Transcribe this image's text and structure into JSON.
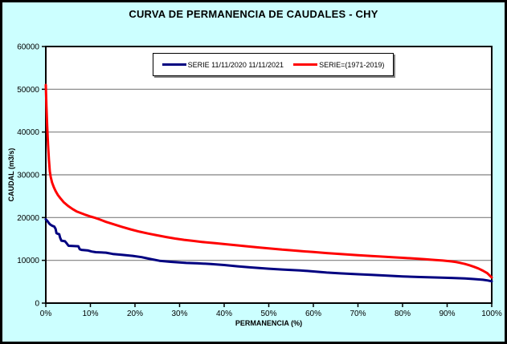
{
  "window": {
    "background": "#CCFFFF",
    "border_color": "#000000"
  },
  "title": "CURVA DE PERMANENCIA DE CAUDALES - CHY",
  "legend": {
    "entries": [
      {
        "label": "SERIE 11/11/2020 11/11/2021",
        "color": "#000080"
      },
      {
        "label": "SERIE=(1971-2019)",
        "color": "#FF0000"
      }
    ]
  },
  "chart_data": {
    "type": "line",
    "title": "CURVA DE PERMANENCIA DE CAUDALES - CHY",
    "xlabel": "PERMANENCIA (%)",
    "ylabel": "CAUDAL (m3/s)",
    "xlim": [
      0,
      100
    ],
    "ylim": [
      0,
      60000
    ],
    "x_tick_values": [
      0,
      10,
      20,
      30,
      40,
      50,
      60,
      70,
      80,
      90,
      100
    ],
    "x_ticks": [
      "0%",
      "10%",
      "20%",
      "30%",
      "40%",
      "50%",
      "60%",
      "70%",
      "80%",
      "90%",
      "100%"
    ],
    "y_tick_values": [
      0,
      10000,
      20000,
      30000,
      40000,
      50000,
      60000
    ],
    "y_ticks": [
      "0",
      "10000",
      "20000",
      "30000",
      "40000",
      "50000",
      "60000"
    ],
    "grid": true,
    "grid_horizontal_only": true,
    "gridline_color": "#808080",
    "plot_bg": "#FFFFFF",
    "axis_color": "#000000",
    "legend_position": "top-center-inside",
    "series": [
      {
        "name": "SERIE 11/11/2020 11/11/2021",
        "color": "#000080",
        "points": [
          [
            0,
            19600
          ],
          [
            0.3,
            19250
          ],
          [
            0.6,
            18850
          ],
          [
            0.9,
            18450
          ],
          [
            1.2,
            18250
          ],
          [
            1.5,
            18050
          ],
          [
            1.9,
            17900
          ],
          [
            2.2,
            17350
          ],
          [
            2.4,
            16350
          ],
          [
            2.7,
            16200
          ],
          [
            3.0,
            16100
          ],
          [
            3.2,
            15300
          ],
          [
            3.5,
            14600
          ],
          [
            4.3,
            14450
          ],
          [
            4.7,
            13950
          ],
          [
            5.1,
            13400
          ],
          [
            6,
            13350
          ],
          [
            7.3,
            13300
          ],
          [
            7.6,
            12600
          ],
          [
            8,
            12450
          ],
          [
            9.5,
            12300
          ],
          [
            10.3,
            12050
          ],
          [
            11.2,
            11900
          ],
          [
            13.5,
            11800
          ],
          [
            15,
            11500
          ],
          [
            17,
            11300
          ],
          [
            19.5,
            11050
          ],
          [
            21.5,
            10750
          ],
          [
            23,
            10400
          ],
          [
            25.5,
            9900
          ],
          [
            28,
            9650
          ],
          [
            31.5,
            9400
          ],
          [
            34,
            9300
          ],
          [
            37,
            9150
          ],
          [
            40,
            8900
          ],
          [
            43,
            8600
          ],
          [
            46,
            8350
          ],
          [
            50,
            8050
          ],
          [
            53,
            7850
          ],
          [
            57,
            7650
          ],
          [
            60,
            7400
          ],
          [
            63,
            7150
          ],
          [
            66,
            6950
          ],
          [
            70,
            6750
          ],
          [
            73,
            6600
          ],
          [
            77,
            6400
          ],
          [
            80,
            6250
          ],
          [
            84,
            6100
          ],
          [
            88,
            5980
          ],
          [
            91,
            5880
          ],
          [
            94,
            5750
          ],
          [
            96,
            5620
          ],
          [
            98,
            5450
          ],
          [
            99,
            5300
          ],
          [
            100,
            5100
          ]
        ]
      },
      {
        "name": "SERIE=(1971-2019)",
        "color": "#FF0000",
        "points": [
          [
            0,
            51000
          ],
          [
            0.15,
            46000
          ],
          [
            0.3,
            41500
          ],
          [
            0.5,
            37000
          ],
          [
            0.7,
            33500
          ],
          [
            0.9,
            30800
          ],
          [
            1.1,
            29500
          ],
          [
            1.4,
            28200
          ],
          [
            1.8,
            27100
          ],
          [
            2.2,
            26200
          ],
          [
            2.7,
            25300
          ],
          [
            3.2,
            24600
          ],
          [
            4,
            23600
          ],
          [
            5,
            22700
          ],
          [
            6,
            22000
          ],
          [
            7,
            21400
          ],
          [
            8,
            21000
          ],
          [
            9,
            20600
          ],
          [
            10,
            20250
          ],
          [
            11,
            19950
          ],
          [
            12,
            19600
          ],
          [
            13.5,
            19000
          ],
          [
            15,
            18500
          ],
          [
            17,
            17850
          ],
          [
            19,
            17250
          ],
          [
            21,
            16700
          ],
          [
            23,
            16250
          ],
          [
            25,
            15850
          ],
          [
            27,
            15450
          ],
          [
            29,
            15100
          ],
          [
            31,
            14800
          ],
          [
            33,
            14550
          ],
          [
            35,
            14300
          ],
          [
            38,
            14000
          ],
          [
            40,
            13800
          ],
          [
            43,
            13500
          ],
          [
            45,
            13300
          ],
          [
            48,
            13000
          ],
          [
            50,
            12800
          ],
          [
            53,
            12500
          ],
          [
            55,
            12350
          ],
          [
            58,
            12100
          ],
          [
            60,
            11950
          ],
          [
            63,
            11700
          ],
          [
            65,
            11550
          ],
          [
            68,
            11350
          ],
          [
            70,
            11200
          ],
          [
            73,
            11000
          ],
          [
            75,
            10900
          ],
          [
            78,
            10700
          ],
          [
            80,
            10600
          ],
          [
            83,
            10400
          ],
          [
            85,
            10250
          ],
          [
            87,
            10100
          ],
          [
            89,
            9950
          ],
          [
            91,
            9750
          ],
          [
            92,
            9600
          ],
          [
            93,
            9400
          ],
          [
            94,
            9150
          ],
          [
            95,
            8850
          ],
          [
            96,
            8500
          ],
          [
            97,
            8100
          ],
          [
            98,
            7600
          ],
          [
            99,
            7000
          ],
          [
            99.6,
            6400
          ],
          [
            100,
            6000
          ]
        ]
      }
    ]
  }
}
